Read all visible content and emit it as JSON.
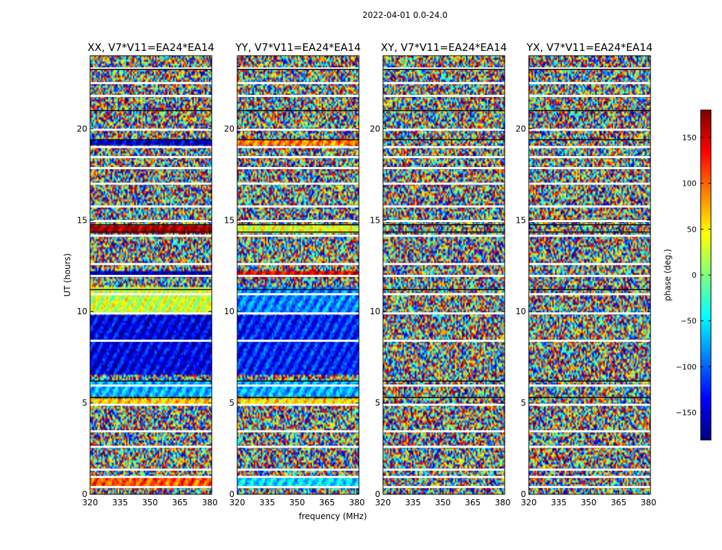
{
  "figure": {
    "suptitle": "2022-04-01 0.0-24.0",
    "xlabel": "frequency (MHz)",
    "ylabel": "UT (hours)"
  },
  "chart_data": {
    "type": "heatmap",
    "title": "2022-04-01 0.0-24.0",
    "xlabel": "frequency (MHz)",
    "ylabel": "UT (hours)",
    "xlim": [
      320,
      381
    ],
    "ylim": [
      0,
      24
    ],
    "x_ticks": [
      320,
      335,
      350,
      365,
      380
    ],
    "y_ticks": [
      0,
      5,
      10,
      15,
      20
    ],
    "panels": [
      {
        "title": "XX, V7*V11=EA24*EA14",
        "coherent_bands": [
          [
            0.3,
            1.0,
            0.6
          ],
          [
            4.9,
            5.2,
            0.35
          ],
          [
            5.3,
            6.2,
            -0.4
          ],
          [
            6.5,
            9.8,
            -0.8
          ],
          [
            9.9,
            11.3,
            0.15
          ],
          [
            11.9,
            12.2,
            -0.95
          ],
          [
            14.3,
            14.7,
            0.95
          ],
          [
            19.1,
            19.4,
            -0.85
          ]
        ]
      },
      {
        "title": "YY, V7*V11=EA24*EA14",
        "coherent_bands": [
          [
            0.3,
            1.0,
            -0.3
          ],
          [
            4.9,
            5.2,
            0.3
          ],
          [
            5.3,
            6.2,
            -0.4
          ],
          [
            6.5,
            9.8,
            -0.7
          ],
          [
            9.9,
            11.3,
            -0.5
          ],
          [
            11.9,
            12.2,
            0.8
          ],
          [
            14.3,
            14.7,
            0.2
          ],
          [
            19.1,
            19.4,
            0.5
          ]
        ]
      },
      {
        "title": "XY, V7*V11=EA24*EA14",
        "coherent_bands": []
      },
      {
        "title": "YX, V7*V11=EA24*EA14",
        "coherent_bands": []
      }
    ],
    "flagged_hours": [
      0.4,
      0.95,
      1.35,
      2.6,
      3.45,
      4.9,
      5.95,
      8.4,
      9.9,
      10.95,
      11.95,
      12.6,
      14.15,
      14.95,
      15.75,
      17.0,
      17.85,
      18.45,
      19.0,
      19.95,
      21.8,
      22.5,
      23.3
    ],
    "dark_hours": [
      5.3,
      6.2,
      11.2,
      14.35,
      14.75,
      19.4,
      21.0,
      23.25
    ],
    "colorbar": {
      "label": "phase (deg.)",
      "range": [
        -180,
        180
      ],
      "ticks": [
        150,
        100,
        50,
        0,
        -50,
        -100,
        -150
      ],
      "colormap": [
        "#00007f",
        "#0000ff",
        "#007fff",
        "#00ffff",
        "#7fff7f",
        "#ffff00",
        "#ff7f00",
        "#ff0000",
        "#7f0000"
      ]
    }
  }
}
